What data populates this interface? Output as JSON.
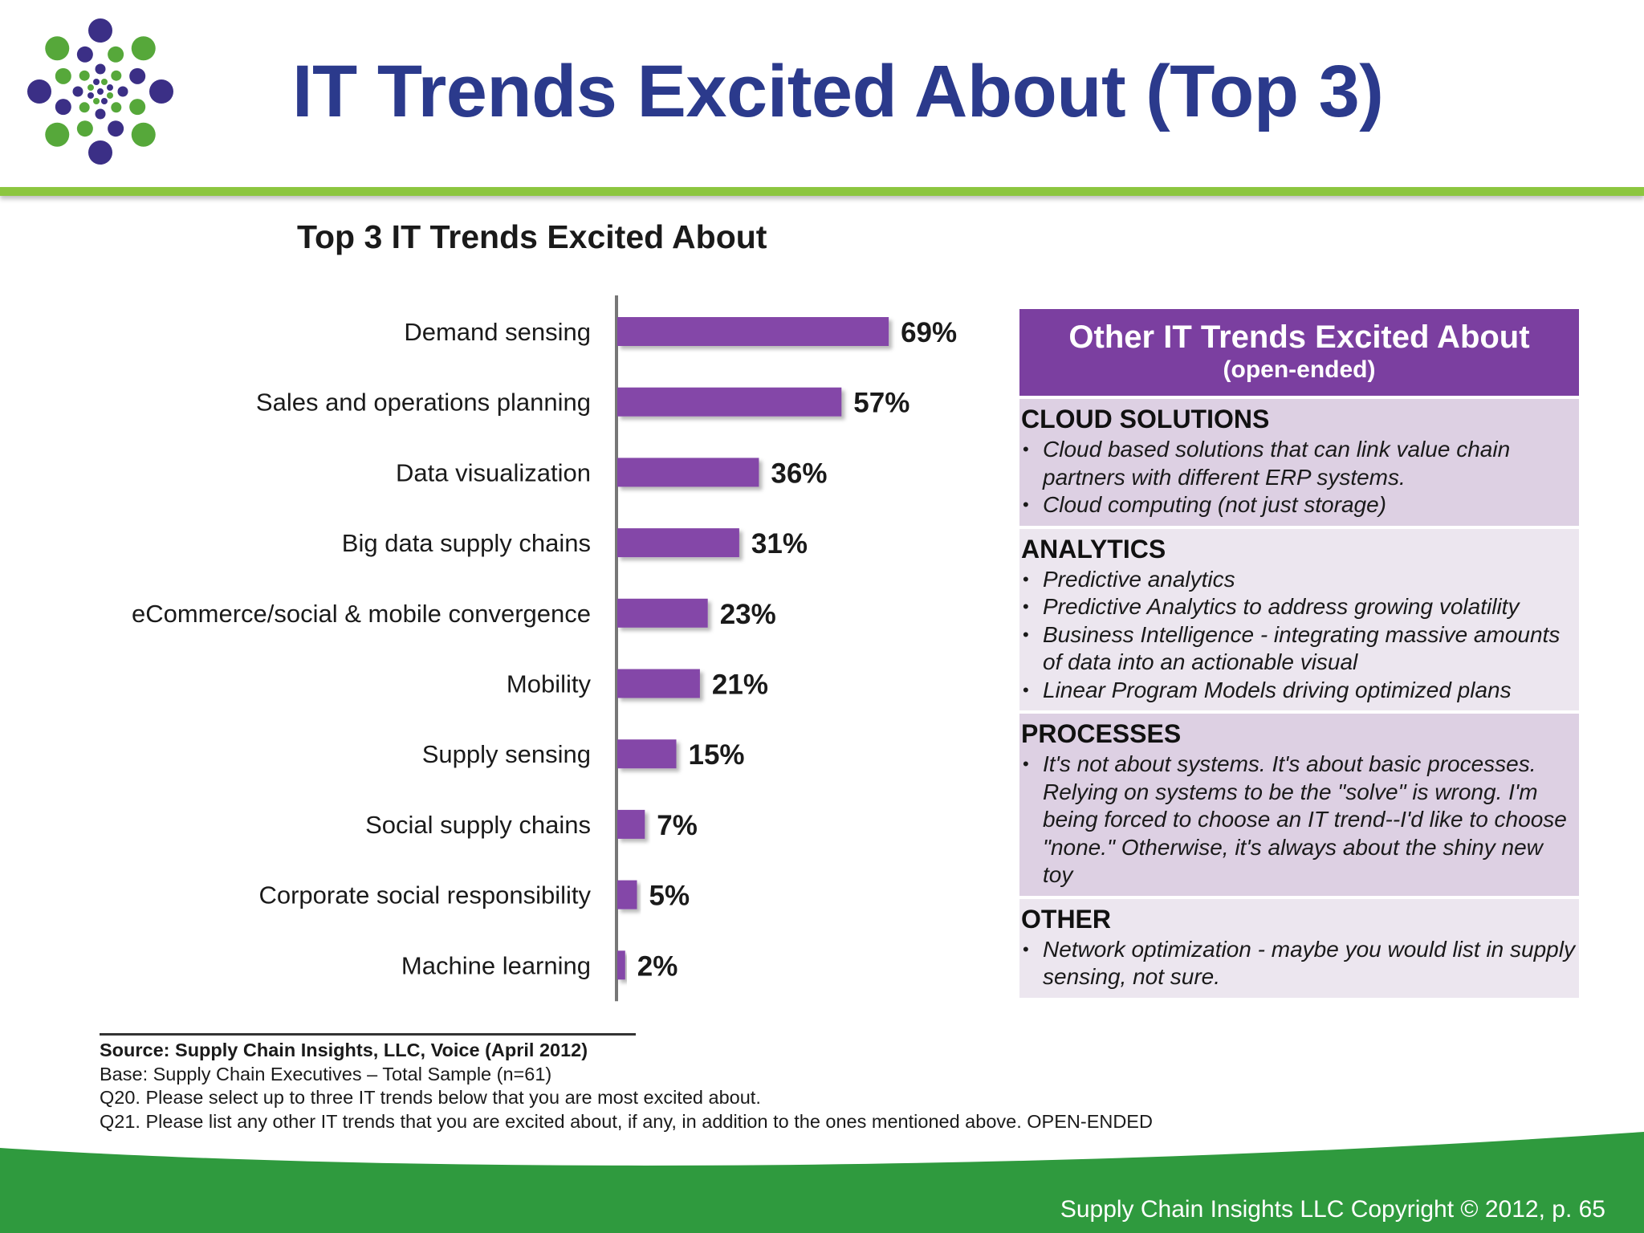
{
  "slide": {
    "title": "IT Trends Excited About (Top 3)",
    "copyright": "Supply Chain Insights LLC Copyright © 2012, p. 65"
  },
  "colors": {
    "title_blue": "#2b3a8c",
    "accent_green": "#8cc63f",
    "footer_green": "#2f9a3e",
    "bar_purple": "#8446a8",
    "logo_purple": "#3b2f86",
    "logo_green": "#56a83a"
  },
  "chart_data": {
    "type": "bar",
    "orientation": "horizontal",
    "title": "Top 3 IT Trends Excited About",
    "categories": [
      "Demand sensing",
      "Sales and operations planning",
      "Data visualization",
      "Big data supply chains",
      "eCommerce/social & mobile convergence",
      "Mobility",
      "Supply sensing",
      "Social supply chains",
      "Corporate social responsibility",
      "Machine learning"
    ],
    "values": [
      69,
      57,
      36,
      31,
      23,
      21,
      15,
      7,
      5,
      2
    ],
    "value_labels": [
      "69%",
      "57%",
      "36%",
      "31%",
      "23%",
      "21%",
      "15%",
      "7%",
      "5%",
      "2%"
    ],
    "unit": "%",
    "xlim": [
      0,
      100
    ],
    "grid": false,
    "legend": "none"
  },
  "panel": {
    "title": "Other IT Trends Excited About",
    "subtitle": "(open-ended)",
    "sections": [
      {
        "heading": "CLOUD SOLUTIONS",
        "items": [
          "Cloud based solutions that can link value chain partners with different ERP systems.",
          "Cloud computing (not just storage)"
        ]
      },
      {
        "heading": "ANALYTICS",
        "items": [
          "Predictive analytics",
          "Predictive Analytics to address growing volatility",
          "Business Intelligence - integrating massive amounts of data into an actionable visual",
          "Linear Program Models driving optimized plans"
        ]
      },
      {
        "heading": "PROCESSES",
        "items": [
          "It's not about systems.  It's about basic processes.  Relying on systems to be the \"solve\" is wrong.  I'm being forced to choose an IT trend--I'd like to choose \"none.\"  Otherwise, it's always about the shiny new toy"
        ]
      },
      {
        "heading": "OTHER",
        "items": [
          "Network optimization - maybe you would list in supply sensing, not sure."
        ]
      }
    ]
  },
  "notes": {
    "source": "Source:  Supply Chain Insights, LLC, Voice (April 2012)",
    "base": "Base:  Supply Chain Executives – Total Sample (n=61)",
    "q20": "Q20. Please select up to three IT trends below that you are most excited about.",
    "q21": "Q21. Please list any other IT trends that you are excited about, if any, in addition to the ones mentioned above.  OPEN-ENDED"
  }
}
